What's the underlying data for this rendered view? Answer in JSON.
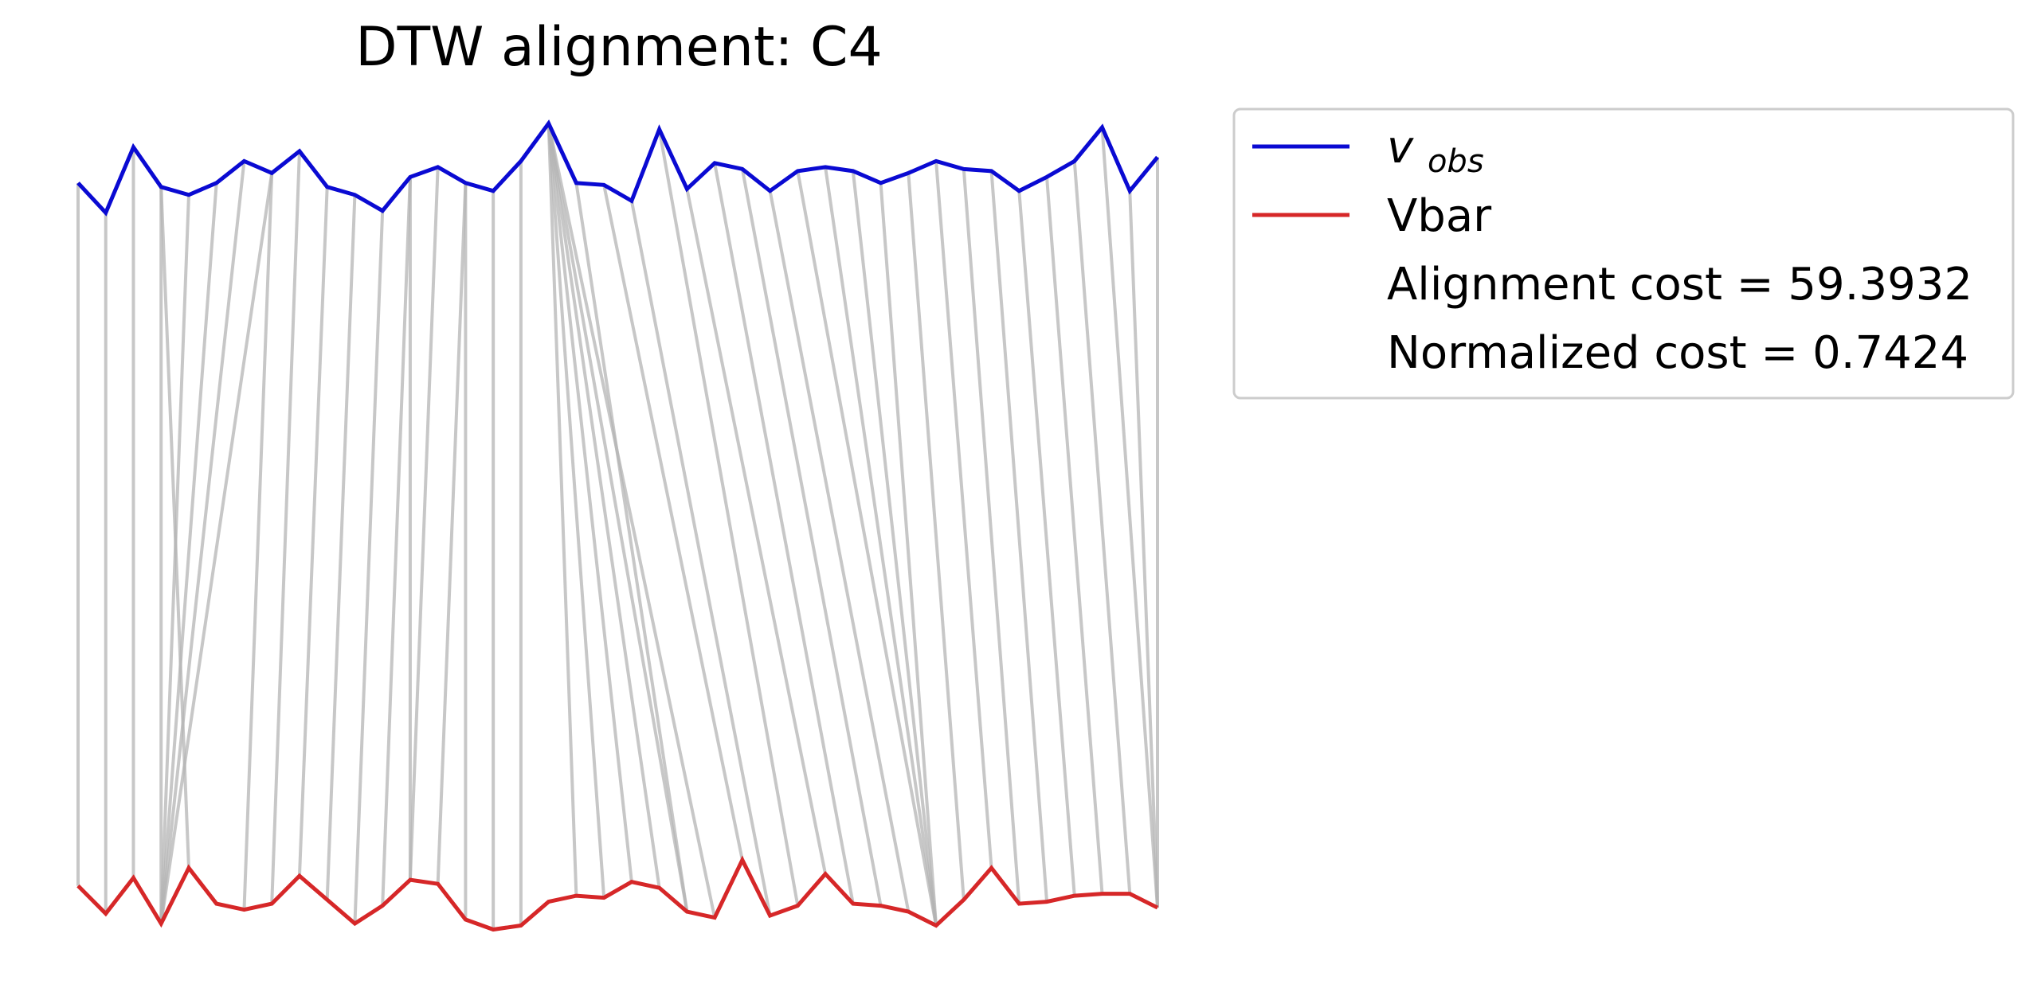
{
  "chart_data": {
    "type": "line",
    "title": "DTW alignment: C4",
    "xlabel": "",
    "ylabel": "",
    "axes_visible": false,
    "grid": false,
    "legend_placement": "outside upper right",
    "colors": {
      "v_obs": "#0a0ad2",
      "vbar": "#d62728",
      "connector": "#b4b4b4"
    },
    "legend": {
      "series_1_main": "v",
      "series_1_sub": "obs",
      "series_2": "Vbar",
      "cost_label": "Alignment cost = 59.3932",
      "norm_label": "Normalized cost = 0.7424"
    },
    "x": [
      0,
      1,
      2,
      3,
      4,
      5,
      6,
      7,
      8,
      9,
      10,
      11,
      12,
      13,
      14,
      15,
      16,
      17,
      18,
      19,
      20,
      21,
      22,
      23,
      24,
      25,
      26,
      27,
      28,
      29,
      30,
      31,
      32,
      33,
      34,
      35,
      36,
      37,
      38,
      39
    ],
    "series": [
      {
        "name": "v_obs",
        "values": [
          2.92,
          2.77,
          3.1,
          2.9,
          2.86,
          2.92,
          3.03,
          2.97,
          3.08,
          2.9,
          2.86,
          2.78,
          2.95,
          3.0,
          2.92,
          2.88,
          3.03,
          3.22,
          2.92,
          2.91,
          2.83,
          3.19,
          2.89,
          3.02,
          2.99,
          2.88,
          2.98,
          3.0,
          2.98,
          2.92,
          2.97,
          3.03,
          2.99,
          2.98,
          2.88,
          2.95,
          3.03,
          3.2,
          2.88,
          3.05
        ]
      },
      {
        "name": "Vbar",
        "values": [
          -0.62,
          -0.76,
          -0.58,
          -0.81,
          -0.53,
          -0.71,
          -0.74,
          -0.71,
          -0.57,
          -0.69,
          -0.81,
          -0.72,
          -0.59,
          -0.61,
          -0.79,
          -0.84,
          -0.82,
          -0.7,
          -0.67,
          -0.68,
          -0.6,
          -0.63,
          -0.75,
          -0.78,
          -0.49,
          -0.77,
          -0.72,
          -0.56,
          -0.71,
          -0.72,
          -0.75,
          -0.82,
          -0.69,
          -0.53,
          -0.71,
          -0.7,
          -0.67,
          -0.66,
          -0.66,
          -0.73
        ]
      }
    ],
    "alignment_pairs": [
      [
        0,
        0
      ],
      [
        1,
        1
      ],
      [
        2,
        2
      ],
      [
        3,
        3
      ],
      [
        3,
        4
      ],
      [
        4,
        3
      ],
      [
        5,
        3
      ],
      [
        6,
        3
      ],
      [
        7,
        3
      ],
      [
        7,
        6
      ],
      [
        8,
        7
      ],
      [
        9,
        8
      ],
      [
        10,
        9
      ],
      [
        11,
        10
      ],
      [
        12,
        11
      ],
      [
        12,
        12
      ],
      [
        13,
        12
      ],
      [
        14,
        13
      ],
      [
        14,
        14
      ],
      [
        15,
        15
      ],
      [
        16,
        16
      ],
      [
        17,
        18
      ],
      [
        17,
        19
      ],
      [
        17,
        20
      ],
      [
        17,
        21
      ],
      [
        17,
        22
      ],
      [
        17,
        23
      ],
      [
        18,
        22
      ],
      [
        19,
        24
      ],
      [
        20,
        25
      ],
      [
        21,
        26
      ],
      [
        22,
        27
      ],
      [
        23,
        28
      ],
      [
        24,
        29
      ],
      [
        25,
        30
      ],
      [
        26,
        31
      ],
      [
        27,
        31
      ],
      [
        28,
        31
      ],
      [
        29,
        31
      ],
      [
        30,
        32
      ],
      [
        31,
        33
      ],
      [
        32,
        34
      ],
      [
        33,
        35
      ],
      [
        34,
        36
      ],
      [
        35,
        37
      ],
      [
        36,
        38
      ],
      [
        37,
        39
      ],
      [
        38,
        39
      ],
      [
        39,
        39
      ]
    ]
  }
}
